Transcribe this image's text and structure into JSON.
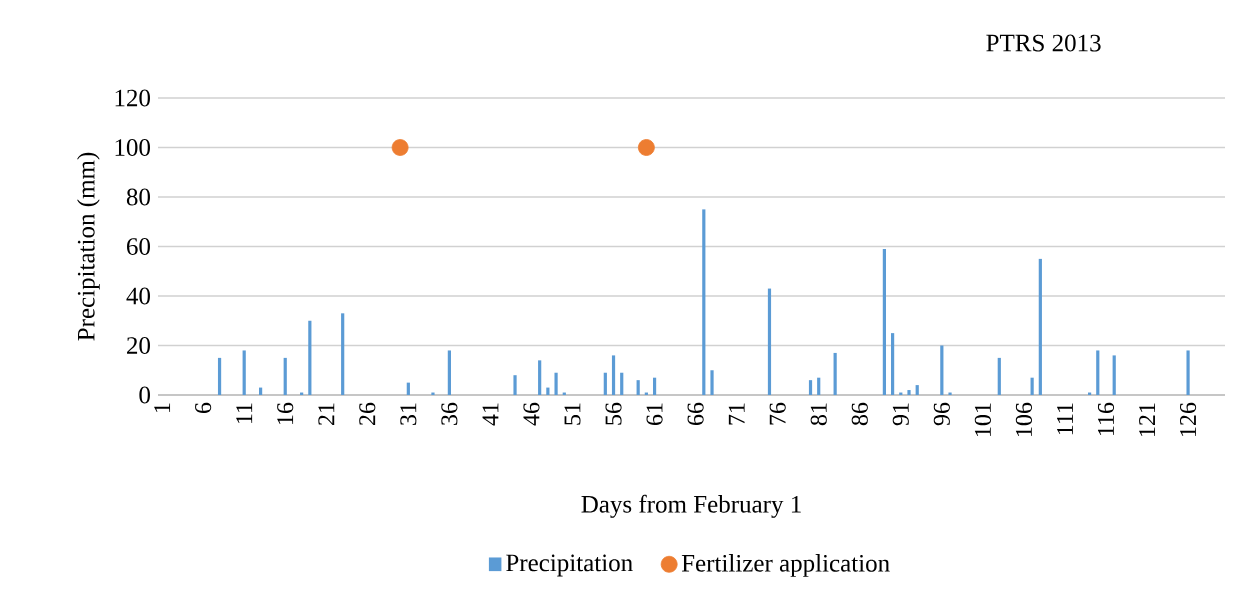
{
  "chart_data": {
    "type": "bar",
    "title": "PTRS 2013",
    "xlabel": "Days from February 1",
    "ylabel": "Precipitation (mm)",
    "categories": [
      "1",
      null,
      null,
      null,
      null,
      "6",
      null,
      null,
      null,
      null,
      "11",
      null,
      null,
      null,
      null,
      "16",
      null,
      null,
      null,
      null,
      "21",
      null,
      null,
      null,
      null,
      "26",
      null,
      null,
      null,
      null,
      "31",
      null,
      null,
      null,
      null,
      "36",
      null,
      null,
      null,
      null,
      "41",
      null,
      null,
      null,
      null,
      "46",
      null,
      null,
      null,
      null,
      "51",
      null,
      null,
      null,
      null,
      "56",
      null,
      null,
      null,
      null,
      "61",
      null,
      null,
      null,
      null,
      "66",
      null,
      null,
      null,
      null,
      "71",
      null,
      null,
      null,
      null,
      "76",
      null,
      null,
      null,
      null,
      "81",
      null,
      null,
      null,
      null,
      "86",
      null,
      null,
      null,
      null,
      "91",
      null,
      null,
      null,
      null,
      "96",
      null,
      null,
      null,
      null,
      "101",
      null,
      null,
      null,
      null,
      "106",
      null,
      null,
      null,
      null,
      "111",
      null,
      null,
      null,
      null,
      "116",
      null,
      null,
      null,
      null,
      "121",
      null,
      null,
      null,
      null,
      "126",
      null,
      null,
      null,
      null
    ],
    "series": [
      {
        "name": "Precipitation",
        "color": "#5b9bd5",
        "values": [
          null,
          null,
          null,
          null,
          null,
          null,
          null,
          15,
          null,
          null,
          18,
          null,
          3,
          null,
          null,
          15,
          null,
          1,
          30,
          null,
          null,
          null,
          33,
          null,
          null,
          null,
          null,
          null,
          null,
          null,
          5,
          null,
          null,
          1,
          null,
          18,
          null,
          null,
          null,
          null,
          null,
          null,
          null,
          8,
          null,
          null,
          14,
          3,
          9,
          1,
          null,
          null,
          null,
          null,
          9,
          16,
          9,
          null,
          6,
          1,
          7,
          null,
          null,
          null,
          null,
          null,
          75,
          10,
          null,
          null,
          null,
          null,
          null,
          null,
          43,
          null,
          null,
          null,
          null,
          6,
          7,
          null,
          17,
          null,
          null,
          null,
          null,
          null,
          59,
          25,
          1,
          2,
          4,
          null,
          null,
          20,
          1,
          null,
          null,
          null,
          null,
          null,
          15,
          null,
          null,
          null,
          7,
          55,
          null,
          null,
          null,
          null,
          null,
          1,
          18,
          null,
          16,
          null,
          null,
          null,
          null,
          null,
          null,
          null,
          null,
          18,
          null,
          null,
          null,
          null
        ]
      },
      {
        "name": "Fertilizer application",
        "type": "scatter",
        "color": "#ed7d31",
        "values": [
          null,
          null,
          null,
          null,
          null,
          null,
          null,
          null,
          null,
          null,
          null,
          null,
          null,
          null,
          null,
          null,
          null,
          null,
          null,
          null,
          null,
          null,
          null,
          null,
          null,
          null,
          null,
          null,
          null,
          100,
          null,
          null,
          null,
          null,
          null,
          null,
          null,
          null,
          null,
          null,
          null,
          null,
          null,
          null,
          null,
          null,
          null,
          null,
          null,
          null,
          null,
          null,
          null,
          null,
          null,
          null,
          null,
          null,
          null,
          100,
          null,
          null,
          null,
          null,
          null,
          null,
          null,
          null,
          null,
          null,
          null,
          null,
          null,
          null,
          null,
          null,
          null,
          null,
          null,
          null,
          null,
          null,
          null,
          null,
          null,
          null,
          null,
          null,
          null,
          null,
          null,
          null,
          null,
          null,
          null,
          null,
          null,
          null,
          null,
          null,
          null,
          null,
          null,
          null,
          null,
          null,
          null,
          null,
          null,
          null,
          null,
          null,
          null,
          null,
          null,
          null,
          null,
          null,
          null,
          null,
          null,
          null,
          null,
          null,
          null,
          null,
          null,
          null,
          null,
          null
        ]
      }
    ],
    "ylim": [
      0,
      120
    ],
    "yticks": [
      0,
      20,
      40,
      60,
      80,
      100,
      120
    ],
    "grid": "y",
    "legend": "bottom",
    "marker": "circle"
  }
}
